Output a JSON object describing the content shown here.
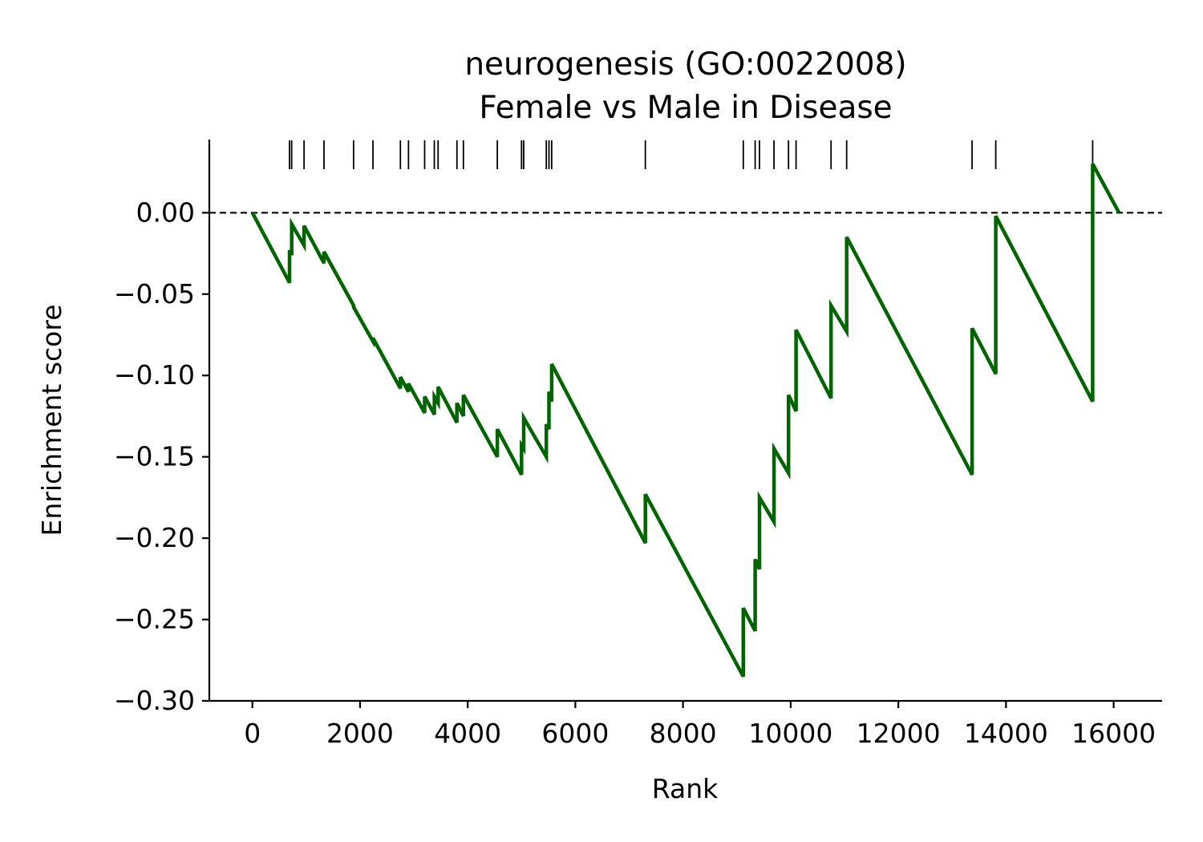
{
  "chart_data": {
    "type": "line",
    "title": "neurogenesis (GO:0022008)",
    "subtitle": "Female vs Male in Disease",
    "xlabel": "Rank",
    "ylabel": "Enrichment score",
    "xlim": [
      -800,
      16900
    ],
    "ylim": [
      -0.3,
      0.045
    ],
    "xticks": [
      0,
      2000,
      4000,
      6000,
      8000,
      10000,
      12000,
      14000,
      16000
    ],
    "xtick_labels": [
      "0",
      "2000",
      "4000",
      "6000",
      "8000",
      "10000",
      "12000",
      "14000",
      "16000"
    ],
    "yticks": [
      0.0,
      -0.05,
      -0.1,
      -0.15,
      -0.2,
      -0.25,
      -0.3
    ],
    "ytick_labels": [
      "0.00",
      "−0.05",
      "−0.10",
      "−0.15",
      "−0.20",
      "−0.25",
      "−0.30"
    ],
    "grid": false,
    "zero_line": "dashed",
    "hits": [
      690,
      730,
      960,
      1330,
      1880,
      2240,
      2750,
      2900,
      3200,
      3380,
      3450,
      3800,
      3920,
      4550,
      5000,
      5040,
      5460,
      5510,
      5560,
      7300,
      9120,
      9340,
      9420,
      9690,
      9960,
      10100,
      10750,
      11040,
      13370,
      13810,
      15610
    ],
    "series": [
      {
        "color": "#006400",
        "x": [
          0,
          690,
          690,
          730,
          730,
          960,
          960,
          1330,
          1330,
          1880,
          1880,
          2240,
          2240,
          2750,
          2750,
          2900,
          2900,
          3200,
          3200,
          3380,
          3380,
          3450,
          3450,
          3800,
          3800,
          3920,
          3920,
          4550,
          4550,
          5000,
          5000,
          5040,
          5040,
          5460,
          5460,
          5510,
          5510,
          5560,
          5560,
          7300,
          7300,
          9120,
          9120,
          9340,
          9340,
          9420,
          9420,
          9690,
          9690,
          9960,
          9960,
          10100,
          10100,
          10750,
          10750,
          11040,
          11040,
          13370,
          13370,
          13810,
          13810,
          15610,
          15610,
          16100
        ],
        "y": [
          0.0,
          -0.043,
          -0.023,
          -0.026,
          -0.007,
          -0.02,
          -0.008,
          -0.031,
          -0.024,
          -0.057,
          -0.058,
          -0.079,
          -0.077,
          -0.108,
          -0.101,
          -0.11,
          -0.105,
          -0.123,
          -0.113,
          -0.124,
          -0.113,
          -0.117,
          -0.107,
          -0.129,
          -0.117,
          -0.125,
          -0.112,
          -0.15,
          -0.133,
          -0.161,
          -0.143,
          -0.145,
          -0.126,
          -0.15,
          -0.13,
          -0.133,
          -0.11,
          -0.116,
          -0.093,
          -0.203,
          -0.173,
          -0.285,
          -0.243,
          -0.257,
          -0.213,
          -0.219,
          -0.175,
          -0.19,
          -0.145,
          -0.16,
          -0.112,
          -0.122,
          -0.072,
          -0.114,
          -0.057,
          -0.073,
          -0.015,
          -0.161,
          -0.071,
          -0.099,
          -0.002,
          -0.116,
          0.03,
          0.0
        ]
      }
    ]
  }
}
